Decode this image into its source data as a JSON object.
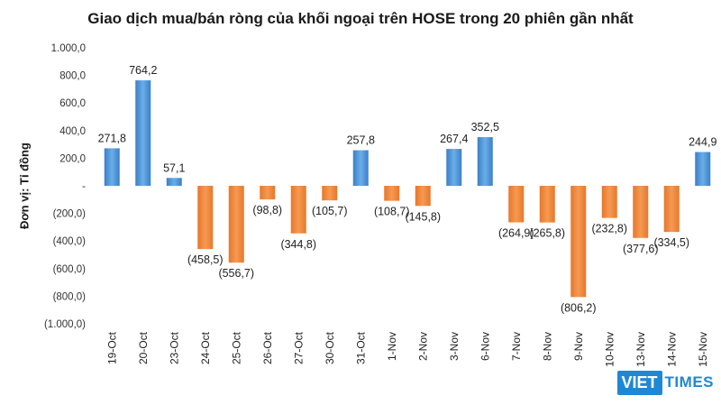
{
  "chart_data": {
    "type": "bar",
    "title": "Giao dịch mua/bán ròng của khối ngoại trên HOSE trong 20 phiên gần nhất",
    "ylabel": "Đơn vị: Tỉ đồng",
    "xlabel": "",
    "ylim": [
      -1000,
      1000
    ],
    "yticks": [
      1000,
      800,
      600,
      400,
      200,
      0,
      -200,
      -400,
      -600,
      -800,
      -1000
    ],
    "ytick_labels": [
      "1.000,0",
      "800,0",
      "600,0",
      "400,0",
      "200,0",
      "-",
      "(200,0)",
      "(400,0)",
      "(600,0)",
      "(800,0)",
      "(1.000,0)"
    ],
    "categories": [
      "19-Oct",
      "20-Oct",
      "23-Oct",
      "24-Oct",
      "25-Oct",
      "26-Oct",
      "27-Oct",
      "30-Oct",
      "31-Oct",
      "1-Nov",
      "2-Nov",
      "3-Nov",
      "6-Nov",
      "7-Nov",
      "8-Nov",
      "9-Nov",
      "10-Nov",
      "13-Nov",
      "14-Nov",
      "15-Nov"
    ],
    "values": [
      271.8,
      764.2,
      57.1,
      -458.5,
      -556.7,
      -98.8,
      -344.8,
      -105.7,
      257.8,
      -108.7,
      -145.8,
      267.4,
      352.5,
      -264.9,
      -265.8,
      -806.2,
      -232.8,
      -377.6,
      -334.5,
      244.9
    ],
    "data_labels": [
      "271,8",
      "764,2",
      "57,1",
      "(458,5)",
      "(556,7)",
      "(98,8)",
      "(344,8)",
      "(105,7)",
      "257,8",
      "(108,7)",
      "(145,8)",
      "267,4",
      "352,5",
      "(264,9)",
      "(265,8)",
      "(806,2)",
      "(232,8)",
      "(377,6)",
      "(334,5)",
      "244,9"
    ],
    "colors": {
      "positive": "#4a90d9",
      "negative": "#ed7d31"
    },
    "grid": false
  },
  "logo": {
    "part1": "VIET",
    "part2": "TIMES"
  }
}
